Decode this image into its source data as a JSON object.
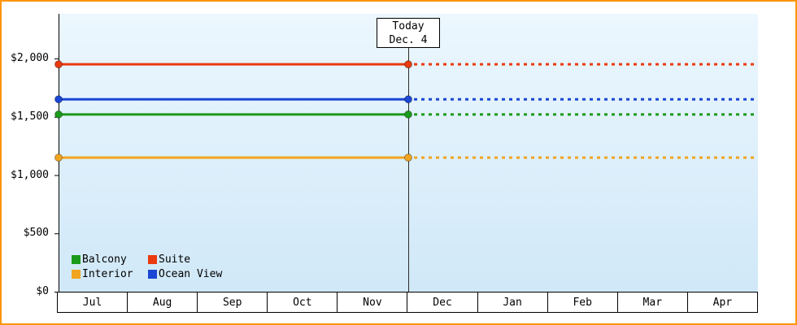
{
  "today": {
    "line1": "Today",
    "line2": "Dec. 4"
  },
  "y_axis": {
    "ticks": [
      {
        "value": 2000,
        "label": "$2,000"
      },
      {
        "value": 1500,
        "label": "$1,500"
      },
      {
        "value": 1000,
        "label": "$1,000"
      },
      {
        "value": 500,
        "label": "$500"
      },
      {
        "value": 0,
        "label": "$0"
      }
    ]
  },
  "x_axis": {
    "months": [
      "Jul",
      "Aug",
      "Sep",
      "Oct",
      "Nov",
      "Dec",
      "Jan",
      "Feb",
      "Mar",
      "Apr"
    ]
  },
  "legend": {
    "items": [
      {
        "label": "Balcony",
        "color": "#1b9a1b"
      },
      {
        "label": "Suite",
        "color": "#ea3a0f"
      },
      {
        "label": "Interior",
        "color": "#f1a41f"
      },
      {
        "label": "Ocean View",
        "color": "#1a47d4"
      }
    ]
  },
  "colors": {
    "frame_border": "#ff9501",
    "plot_top": "#ecf7fe",
    "plot_bottom": "#d0e8f8",
    "axis": "#000000",
    "today_line": "#2b2b2b"
  },
  "chart_data": {
    "type": "line",
    "title": "",
    "x_categories": [
      "Jul",
      "Aug",
      "Sep",
      "Oct",
      "Nov",
      "Dec",
      "Jan",
      "Feb",
      "Mar",
      "Apr"
    ],
    "y_ticks": [
      0,
      500,
      1000,
      1500,
      2000
    ],
    "ylim": [
      0,
      2380
    ],
    "today_marker": {
      "label": "Today",
      "date": "Dec. 4",
      "month": "Dec",
      "day": 4
    },
    "series": [
      {
        "name": "Suite",
        "color": "#ea3a0f",
        "value": 1950,
        "style": "solid-to-today-then-dotted"
      },
      {
        "name": "Ocean View",
        "color": "#1a47d4",
        "value": 1650,
        "style": "solid-to-today-then-dotted"
      },
      {
        "name": "Balcony",
        "color": "#1b9a1b",
        "value": 1520,
        "style": "solid-to-today-then-dotted"
      },
      {
        "name": "Interior",
        "color": "#f1a41f",
        "value": 1150,
        "style": "solid-to-today-then-dotted"
      }
    ],
    "legend_position": "bottom-left",
    "grid": false,
    "notes": "Flat horizontal price lines per cabin category; solid with round end markers up to today (Dec. 4), dotted projection after today."
  }
}
